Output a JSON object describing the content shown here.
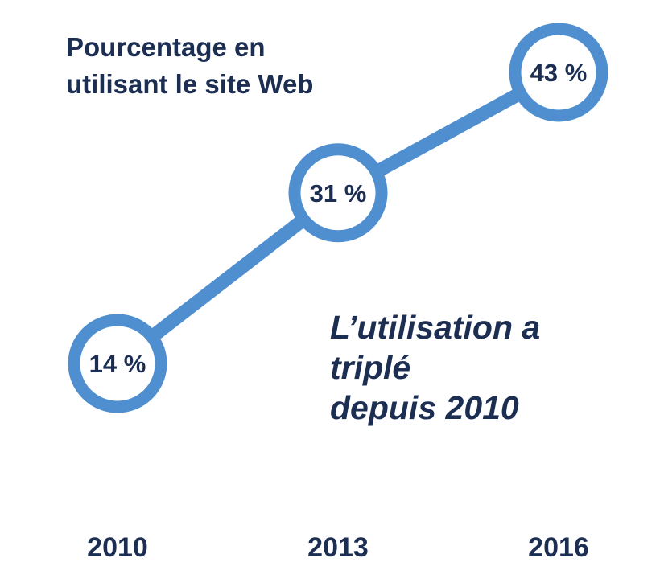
{
  "chart_data": {
    "type": "line",
    "title": [
      "Pourcentage en",
      "utilisant le site Web"
    ],
    "categories": [
      "2010",
      "2013",
      "2016"
    ],
    "values": [
      14,
      31,
      43
    ],
    "value_labels": [
      "14 %",
      "31 %",
      "43 %"
    ],
    "annotation": [
      "L’utilisation a",
      "triplé",
      "depuis 2010"
    ],
    "xlabel": "",
    "ylabel": "",
    "grid": false,
    "legend": "none"
  },
  "colors": {
    "line": "#4f8fcf",
    "marker_fill": "#ffffff",
    "text": "#1c2e52"
  }
}
